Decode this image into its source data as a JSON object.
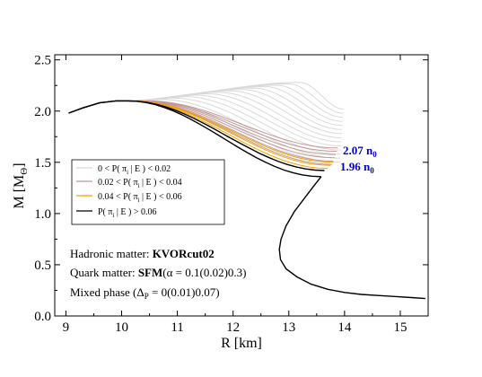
{
  "chart_data": {
    "type": "line",
    "xlabel": "R [km]",
    "ylabel": "M [M_Θ]",
    "ylabel_main": "M [M",
    "ylabel_sub": "Θ",
    "ylabel_close": "]",
    "xlim": [
      8.8,
      15.5
    ],
    "ylim": [
      0.0,
      2.55
    ],
    "xticks": [
      9,
      10,
      11,
      12,
      13,
      14,
      15
    ],
    "yticks": [
      0.0,
      0.5,
      1.0,
      1.5,
      2.0,
      2.5
    ],
    "ytick_labels": [
      "0.0",
      "0.5",
      "1.0",
      "1.5",
      "2.0",
      "2.5"
    ],
    "grid": false,
    "legend_placement": "middle-left",
    "legend": [
      {
        "pre": "0 < P( π",
        "sub": "i",
        "post": " | E ) < 0.02",
        "color": "#d9d9d9"
      },
      {
        "pre": "0.02 < P( π",
        "sub": "i",
        "post": " | E ) < 0.04",
        "color": "#c09896"
      },
      {
        "pre": "0.04 < P( π",
        "sub": "i",
        "post": " | E ) < 0.06",
        "color": "#f0a000"
      },
      {
        "pre": "P( π",
        "sub": "i",
        "post": " | E ) > 0.06",
        "color": "#000000"
      }
    ],
    "density_labels": [
      {
        "value": "2.07 n",
        "sub": "0"
      },
      {
        "value": "1.96 n",
        "sub": "0"
      }
    ],
    "annotations": {
      "hadronic_prefix": "Hadronic matter: ",
      "hadronic_value": "KVORcut02",
      "quark_prefix": "Quark matter: ",
      "quark_model": "SFM",
      "quark_params": "(α = 0.1(0.02)0.3)",
      "mixed_prefix": "Mixed phase (Δ",
      "mixed_sub": "P",
      "mixed_suffix": " = 0(0.01)0.07)"
    },
    "hadronic_branch": {
      "R": [
        15.45,
        15.2,
        14.9,
        14.6,
        14.3,
        14.0,
        13.7,
        13.4,
        13.15,
        12.95,
        12.85,
        12.83,
        12.86,
        12.95,
        13.1,
        13.28,
        13.45,
        13.58
      ],
      "M": [
        0.17,
        0.18,
        0.19,
        0.2,
        0.21,
        0.23,
        0.26,
        0.31,
        0.38,
        0.46,
        0.55,
        0.65,
        0.75,
        0.88,
        1.02,
        1.15,
        1.27,
        1.36
      ]
    },
    "hybrid_common": {
      "R": [
        9.05,
        9.3,
        9.6,
        9.9,
        10.1
      ],
      "M": [
        1.98,
        2.03,
        2.08,
        2.1,
        2.1
      ]
    },
    "hybrid_families": [
      {
        "color": "#d9d9d9",
        "count": 14,
        "onset_R": [
          13.92,
          13.98
        ],
        "onset_M": [
          1.5,
          2.02
        ],
        "peak_R": [
          10.5,
          13.2
        ],
        "peak_M": [
          2.1,
          2.28
        ]
      },
      {
        "color": "#c09896",
        "count": 6,
        "onset_R": [
          13.78,
          13.88
        ],
        "onset_M": [
          1.48,
          1.64
        ],
        "peak_R": [
          10.2,
          10.45
        ],
        "peak_M": [
          2.1,
          2.1
        ]
      },
      {
        "color": "#f0a000",
        "count": 3,
        "onset_R": [
          13.7,
          13.8
        ],
        "onset_M": [
          1.44,
          1.5
        ],
        "peak_R": [
          10.15,
          10.2
        ],
        "peak_M": [
          2.1,
          2.1
        ]
      },
      {
        "color": "#000000",
        "count": 2,
        "onset_R": [
          13.58,
          13.64
        ],
        "onset_M": [
          1.36,
          1.42
        ],
        "peak_R": [
          10.1,
          10.12
        ],
        "peak_M": [
          2.1,
          2.1
        ]
      }
    ]
  }
}
